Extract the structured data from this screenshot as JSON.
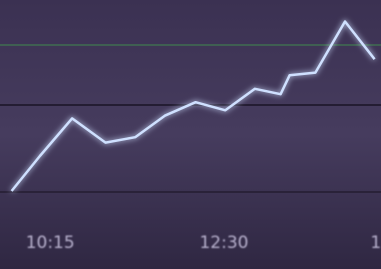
{
  "chart_data": {
    "type": "line",
    "x": [
      585,
      607,
      632,
      658,
      681,
      704,
      728,
      751,
      774,
      794,
      801,
      821,
      844,
      867
    ],
    "values": [
      29,
      42,
      56,
      47,
      49,
      57,
      62,
      59,
      67,
      65,
      72,
      73,
      92,
      78
    ],
    "color": "#cfe0ff",
    "xlim": [
      576,
      872
    ],
    "xticks": [
      {
        "value": 615,
        "label": "10:15"
      },
      {
        "value": 750,
        "label": "12:30"
      },
      {
        "value": 870,
        "label": "1"
      }
    ],
    "ylim": [
      0,
      100
    ]
  }
}
